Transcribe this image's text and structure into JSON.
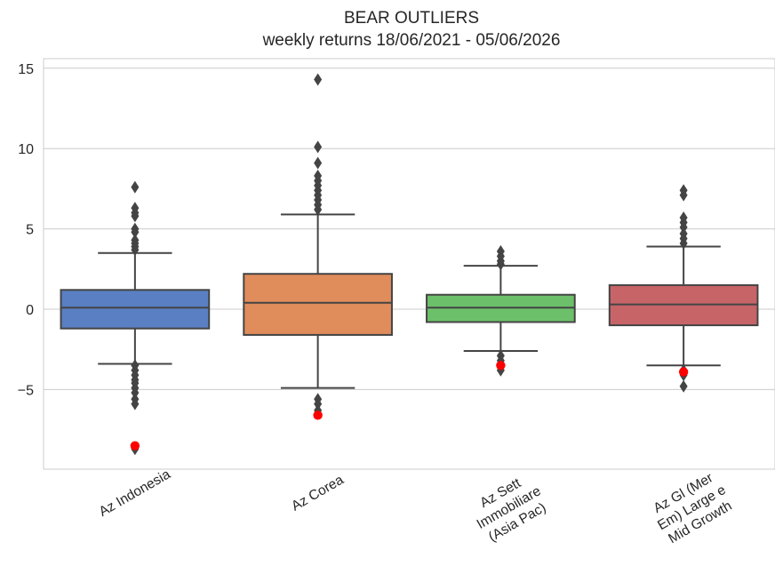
{
  "chart_data": {
    "type": "box",
    "title": "BEAR OUTLIERS",
    "subtitle": "weekly returns 18/06/2021 - 05/06/2026",
    "xlabel": "",
    "ylabel": "",
    "ylim": [
      -10,
      15.5
    ],
    "yticks": [
      -5,
      0,
      5,
      10,
      15
    ],
    "ytick_labels": [
      "−5",
      "0",
      "5",
      "10",
      "15"
    ],
    "grid": "horizontal",
    "legend": "none",
    "categories": [
      {
        "label": "Az Indonesia",
        "label_lines": [
          "Az Indonesia"
        ],
        "color": "#5a7fc2",
        "q1": -1.2,
        "median": 0.1,
        "q3": 1.2,
        "whisker_low": -3.4,
        "whisker_high": 3.5,
        "outliers": [
          7.6,
          6.3,
          6.0,
          5.8,
          5.0,
          4.8,
          4.3,
          4.1,
          3.9,
          3.7,
          -3.5,
          -3.8,
          -4.1,
          -4.4,
          -4.6,
          -4.9,
          -5.2,
          -5.6,
          -5.9,
          -8.7
        ],
        "bear_points": [
          -8.5
        ]
      },
      {
        "label": "Az Corea",
        "label_lines": [
          "Az Corea"
        ],
        "color": "#e08c5b",
        "q1": -1.6,
        "median": 0.4,
        "q3": 2.2,
        "whisker_low": -4.9,
        "whisker_high": 5.9,
        "outliers": [
          14.3,
          10.1,
          9.1,
          8.3,
          8.0,
          7.7,
          7.4,
          7.1,
          6.8,
          6.5,
          6.2,
          -5.6,
          -5.9,
          -6.3
        ],
        "bear_points": [
          -6.6
        ]
      },
      {
        "label": "Az Sett Immobiliare (Asia Pac)",
        "label_lines": [
          "Az Sett",
          "Immobiliare",
          "(Asia Pac)"
        ],
        "color": "#6dc06a",
        "q1": -0.8,
        "median": 0.1,
        "q3": 0.9,
        "whisker_low": -2.6,
        "whisker_high": 2.7,
        "outliers": [
          3.6,
          3.3,
          3.0,
          2.8,
          -2.9,
          -3.2,
          -3.5,
          -3.8
        ],
        "bear_points": [
          -3.5
        ]
      },
      {
        "label": "Az Gl (Mer Em) Large e Mid Growth",
        "label_lines": [
          "Az Gl (Mer",
          "Em) Large e",
          "Mid Growth"
        ],
        "color": "#c76468",
        "q1": -1.0,
        "median": 0.3,
        "q3": 1.5,
        "whisker_low": -3.5,
        "whisker_high": 3.9,
        "outliers": [
          7.4,
          7.1,
          5.7,
          5.4,
          5.1,
          4.7,
          4.4,
          4.1,
          -3.8,
          -4.1,
          -4.8
        ],
        "bear_points": [
          -3.9
        ]
      }
    ]
  }
}
